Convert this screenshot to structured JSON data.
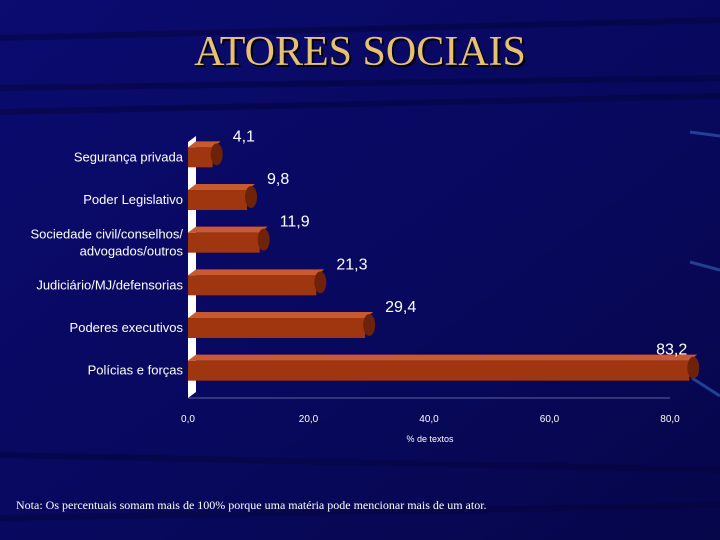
{
  "page": {
    "title": "ATORES SOCIAIS",
    "note": "Nota: Os percentuais somam mais de 100% porque uma matéria pode mencionar mais de um ator."
  },
  "chart_data": {
    "type": "bar",
    "orientation": "horizontal",
    "categories": [
      "Segurança privada",
      "Poder Legislativo",
      [
        "Sociedade civil/conselhos/",
        "advogados/outros"
      ],
      "Judiciário/MJ/defensorias",
      "Poderes executivos",
      "Polícias e forças"
    ],
    "values": [
      4.1,
      9.8,
      11.9,
      21.3,
      29.4,
      83.2
    ],
    "value_labels": [
      "4,1",
      "9,8",
      "11,9",
      "21,3",
      "29,4",
      "83,2"
    ],
    "x_ticks": [
      0,
      20,
      40,
      60,
      80
    ],
    "x_tick_labels": [
      "0,0",
      "20,0",
      "40,0",
      "60,0",
      "80,0"
    ],
    "xlabel": "% de textos",
    "xlim": [
      0,
      80
    ],
    "grid": false,
    "colors": {
      "bar": "#a0360f",
      "bar_dark": "#6e2208",
      "bar_light": "#c85a30",
      "axis_wall": "#ffffff",
      "category_text": "#ffffff",
      "value_text": "#ffffff",
      "background": "#0a0a66"
    }
  }
}
